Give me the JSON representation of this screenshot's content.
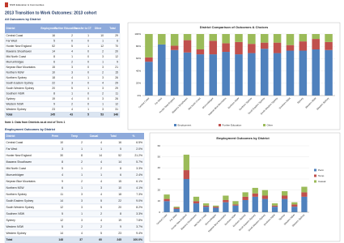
{
  "header": {
    "logo": "NSW Education & Communities",
    "title": "2013 Transition to Work Outcomes: 2013 cohort"
  },
  "table1": {
    "caption": "All Outcomes by District",
    "columns": [
      "District",
      "Employment",
      "Further Education",
      "Transfer to CT",
      "Other",
      "Total"
    ],
    "rows": [
      [
        "Central Coast",
        16,
        2,
        1,
        10,
        29
      ],
      [
        "Far West",
        5,
        0,
        0,
        1,
        6
      ],
      [
        "Hunter New England",
        52,
        5,
        1,
        12,
        70
      ],
      [
        "Illawarra Shoalhaven",
        14,
        4,
        0,
        2,
        20
      ],
      [
        "Mid North Coast",
        8,
        1,
        0,
        3,
        12
      ],
      [
        "Murrumbidgee",
        6,
        2,
        0,
        1,
        9
      ],
      [
        "Nepean Blue Mountains",
        15,
        3,
        0,
        3,
        21
      ],
      [
        "Northern NSW",
        10,
        3,
        0,
        2,
        15
      ],
      [
        "Northern Sydney",
        18,
        4,
        1,
        3,
        26
      ],
      [
        "South Eastern Sydney",
        22,
        3,
        0,
        4,
        29
      ],
      [
        "South Western Sydney",
        20,
        5,
        1,
        3,
        29
      ],
      [
        "Southern NSW",
        8,
        1,
        0,
        2,
        11
      ],
      [
        "Sydney",
        19,
        4,
        0,
        3,
        26
      ],
      [
        "Western NSW",
        9,
        2,
        0,
        1,
        12
      ],
      [
        "Western Sydney",
        23,
        4,
        1,
        3,
        31
      ],
      [
        "Total",
        245,
        43,
        5,
        53,
        346
      ]
    ],
    "note": "Note 1: Data from Districts as at end of Term 1"
  },
  "chart1": {
    "title": "District Comparison of Outcomes & Choices",
    "ylim": [
      0,
      100
    ],
    "yticks": [
      {
        "value": 0,
        "label": "0%"
      },
      {
        "value": 20,
        "label": "20%"
      },
      {
        "value": 40,
        "label": "40%"
      },
      {
        "value": 60,
        "label": "60%"
      },
      {
        "value": 80,
        "label": "80%"
      },
      {
        "value": 100,
        "label": "100%"
      }
    ],
    "series": [
      {
        "name": "Employment",
        "color": "#4f81bd",
        "values": [
          55,
          83,
          74,
          70,
          67,
          67,
          71,
          67,
          69,
          76,
          69,
          73,
          73,
          75,
          74
        ]
      },
      {
        "name": "Further Education",
        "color": "#c0504d",
        "values": [
          7,
          0,
          7,
          20,
          8,
          22,
          14,
          20,
          15,
          10,
          17,
          9,
          15,
          17,
          13
        ]
      },
      {
        "name": "Other",
        "color": "#9bbb59",
        "values": [
          38,
          17,
          19,
          10,
          25,
          11,
          15,
          13,
          16,
          14,
          14,
          18,
          12,
          8,
          13
        ]
      }
    ]
  },
  "table2": {
    "caption": "Employment Outcomes by District",
    "columns": [
      "District",
      "Perm",
      "Temp",
      "Casual",
      "Total",
      "%"
    ],
    "rows": [
      [
        "Central Coast",
        10,
        2,
        4,
        16,
        "6.5%"
      ],
      [
        "Far West",
        3,
        1,
        1,
        5,
        "2.0%"
      ],
      [
        "Hunter New England",
        30,
        8,
        14,
        52,
        "21.2%"
      ],
      [
        "Illawarra Shoalhaven",
        8,
        2,
        4,
        14,
        "5.7%"
      ],
      [
        "Mid North Coast",
        5,
        1,
        2,
        8,
        "3.3%"
      ],
      [
        "Murrumbidgee",
        4,
        1,
        1,
        6,
        "2.4%"
      ],
      [
        "Nepean Blue Mountains",
        9,
        2,
        4,
        15,
        "6.1%"
      ],
      [
        "Northern NSW",
        6,
        1,
        3,
        10,
        "4.1%"
      ],
      [
        "Northern Sydney",
        11,
        3,
        4,
        18,
        "7.3%"
      ],
      [
        "South Eastern Sydney",
        14,
        3,
        5,
        22,
        "9.0%"
      ],
      [
        "South Western Sydney",
        12,
        3,
        5,
        20,
        "8.2%"
      ],
      [
        "Southern NSW",
        5,
        1,
        2,
        8,
        "3.3%"
      ],
      [
        "Sydney",
        12,
        3,
        4,
        19,
        "7.8%"
      ],
      [
        "Western NSW",
        5,
        2,
        2,
        9,
        "3.7%"
      ],
      [
        "Western Sydney",
        14,
        4,
        5,
        23,
        "9.4%"
      ],
      [
        "Total",
        148,
        37,
        60,
        245,
        "100.0%"
      ]
    ]
  },
  "chart2": {
    "title": "Employment Outcomes by District",
    "ylim": [
      0,
      60
    ],
    "yticks": [
      0,
      10,
      20,
      30,
      40,
      50,
      60
    ],
    "series": [
      {
        "name": "Perm",
        "color": "#4f81bd"
      },
      {
        "name": "Temp",
        "color": "#c0504d"
      },
      {
        "name": "Casual",
        "color": "#9bbb59"
      }
    ]
  }
}
